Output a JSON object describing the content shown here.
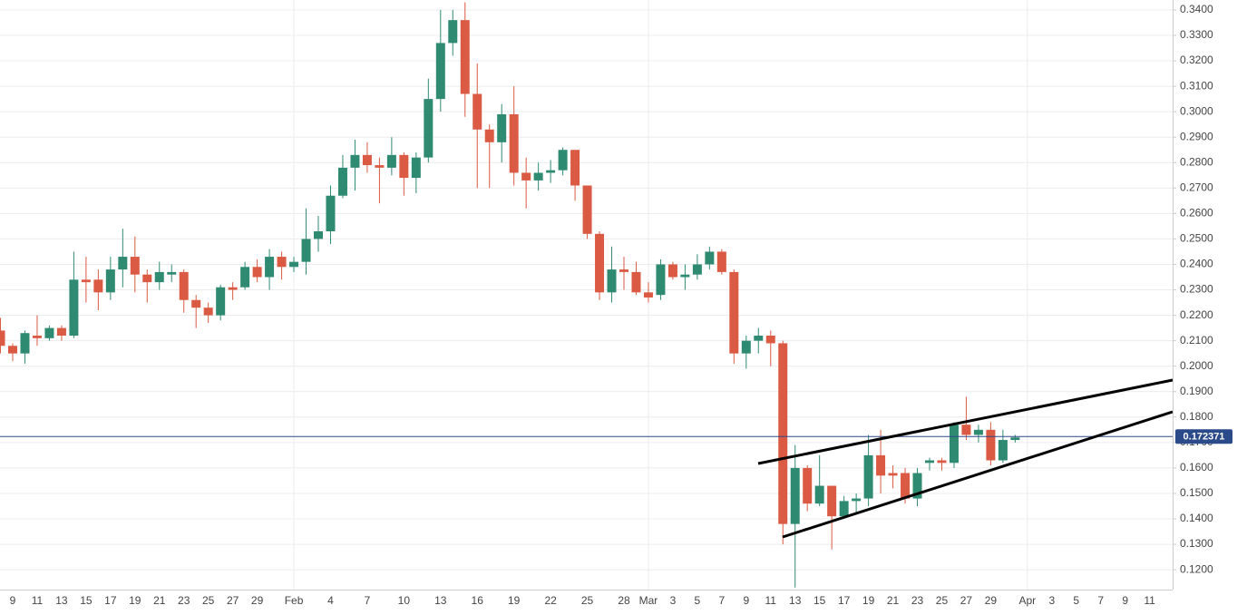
{
  "chart_data": {
    "type": "candlestick",
    "categories": [
      null,
      "9",
      null,
      "11",
      null,
      "13",
      null,
      "15",
      null,
      "17",
      null,
      "19",
      null,
      "21",
      null,
      "23",
      null,
      "25",
      null,
      "27",
      null,
      "29",
      null,
      null,
      "Feb",
      null,
      null,
      "4",
      null,
      null,
      "7",
      null,
      null,
      "10",
      null,
      null,
      "13",
      null,
      null,
      "16",
      null,
      null,
      "19",
      null,
      null,
      "22",
      null,
      null,
      "25",
      null,
      null,
      "28",
      null,
      "Mar",
      null,
      "3",
      null,
      "5",
      null,
      "7",
      null,
      "9",
      null,
      "11",
      null,
      "13",
      null,
      "15",
      null,
      "17",
      null,
      "19",
      null,
      "21",
      null,
      "23",
      null,
      "25",
      null,
      "27",
      null,
      "29",
      null,
      null,
      "Apr",
      null,
      "3",
      null,
      "5",
      null,
      "7",
      null,
      "9",
      null,
      "11",
      null
    ],
    "open": [
      0.214,
      0.208,
      0.205,
      0.212,
      0.211,
      0.215,
      0.212,
      0.234,
      0.234,
      0.229,
      0.238,
      0.243,
      0.236,
      0.233,
      0.236,
      0.237,
      0.226,
      0.223,
      0.22,
      0.231,
      0.231,
      0.239,
      0.235,
      0.243,
      0.239,
      0.241,
      0.25,
      0.253,
      0.267,
      0.278,
      0.283,
      0.279,
      0.278,
      0.283,
      0.274,
      0.282,
      0.305,
      0.327,
      0.336,
      0.307,
      0.293,
      0.288,
      0.299,
      0.276,
      0.273,
      0.276,
      0.277,
      0.285,
      0.271,
      0.252,
      0.229,
      0.238,
      0.237,
      0.229,
      0.228,
      0.24,
      0.235,
      0.236,
      0.24,
      0.245,
      0.237,
      0.205,
      0.21,
      0.212,
      0.209,
      0.138,
      0.16,
      0.146,
      0.153,
      0.141,
      0.147,
      0.148,
      0.165,
      0.158,
      0.158,
      0.148,
      0.162,
      0.163,
      0.162,
      0.177,
      0.173,
      0.175,
      0.163,
      0.171,
      null,
      null,
      null,
      null,
      null,
      null,
      null,
      null,
      null,
      null,
      null,
      null
    ],
    "high": [
      0.219,
      0.209,
      0.214,
      0.22,
      0.216,
      0.216,
      0.245,
      0.243,
      0.238,
      0.243,
      0.254,
      0.251,
      0.238,
      0.241,
      0.24,
      0.238,
      0.228,
      0.225,
      0.232,
      0.233,
      0.241,
      0.242,
      0.246,
      0.245,
      0.243,
      0.262,
      0.259,
      0.271,
      0.283,
      0.289,
      0.288,
      0.282,
      0.29,
      0.284,
      0.284,
      0.313,
      0.34,
      0.34,
      0.343,
      0.319,
      0.295,
      0.303,
      0.31,
      0.282,
      0.28,
      0.281,
      0.286,
      0.285,
      0.271,
      0.253,
      0.247,
      0.243,
      0.241,
      0.233,
      0.242,
      0.241,
      0.24,
      0.244,
      0.247,
      0.246,
      0.238,
      0.212,
      0.215,
      0.214,
      0.21,
      0.169,
      0.161,
      0.165,
      0.153,
      0.149,
      0.15,
      0.173,
      0.175,
      0.161,
      0.16,
      0.16,
      0.164,
      0.164,
      0.178,
      0.188,
      0.177,
      0.178,
      0.175,
      0.173,
      null,
      null,
      null,
      null,
      null,
      null,
      null,
      null,
      null,
      null,
      null,
      null
    ],
    "low": [
      0.205,
      0.202,
      0.201,
      0.208,
      0.21,
      0.21,
      0.211,
      0.225,
      0.222,
      0.226,
      0.231,
      0.229,
      0.225,
      0.23,
      0.233,
      0.221,
      0.215,
      0.217,
      0.218,
      0.226,
      0.23,
      0.233,
      0.23,
      0.234,
      0.237,
      0.236,
      0.245,
      0.248,
      0.266,
      0.269,
      0.276,
      0.264,
      0.275,
      0.267,
      0.268,
      0.28,
      0.3,
      0.322,
      0.298,
      0.27,
      0.27,
      0.28,
      0.271,
      0.262,
      0.269,
      0.272,
      0.275,
      0.265,
      0.25,
      0.226,
      0.225,
      0.23,
      0.228,
      0.225,
      0.226,
      0.234,
      0.23,
      0.234,
      0.238,
      0.236,
      0.201,
      0.199,
      0.205,
      0.2,
      0.13,
      0.113,
      0.143,
      0.145,
      0.128,
      0.14,
      0.142,
      0.145,
      0.15,
      0.152,
      0.146,
      0.145,
      0.159,
      0.159,
      0.16,
      0.171,
      0.17,
      0.161,
      0.162,
      0.17,
      null,
      null,
      null,
      null,
      null,
      null,
      null,
      null,
      null,
      null,
      null,
      null
    ],
    "close": [
      0.208,
      0.205,
      0.213,
      0.211,
      0.215,
      0.212,
      0.234,
      0.233,
      0.229,
      0.238,
      0.243,
      0.236,
      0.233,
      0.237,
      0.237,
      0.226,
      0.223,
      0.22,
      0.231,
      0.23,
      0.239,
      0.235,
      0.243,
      0.239,
      0.241,
      0.25,
      0.253,
      0.267,
      0.278,
      0.283,
      0.279,
      0.278,
      0.283,
      0.274,
      0.282,
      0.305,
      0.327,
      0.336,
      0.307,
      0.293,
      0.288,
      0.299,
      0.276,
      0.273,
      0.276,
      0.277,
      0.285,
      0.271,
      0.252,
      0.229,
      0.238,
      0.237,
      0.229,
      0.227,
      0.24,
      0.235,
      0.236,
      0.24,
      0.245,
      0.237,
      0.205,
      0.21,
      0.212,
      0.209,
      0.138,
      0.16,
      0.146,
      0.153,
      0.141,
      0.147,
      0.148,
      0.165,
      0.157,
      0.157,
      0.148,
      0.158,
      0.163,
      0.162,
      0.177,
      0.173,
      0.175,
      0.163,
      0.171,
      0.172,
      null,
      null,
      null,
      null,
      null,
      null,
      null,
      null,
      null,
      null,
      null,
      null
    ],
    "up_color": "#2f8a72",
    "down_color": "#db5a43",
    "ylim": [
      0.1122,
      0.3439
    ],
    "yticks": [
      {
        "value": 0.12,
        "label": "0.1200"
      },
      {
        "value": 0.13,
        "label": "0.1300"
      },
      {
        "value": 0.14,
        "label": "0.1400"
      },
      {
        "value": 0.15,
        "label": "0.1500"
      },
      {
        "value": 0.16,
        "label": "0.1600"
      },
      {
        "value": 0.17,
        "label": "0.1700"
      },
      {
        "value": 0.18,
        "label": "0.1800"
      },
      {
        "value": 0.19,
        "label": "0.1900"
      },
      {
        "value": 0.2,
        "label": "0.2000"
      },
      {
        "value": 0.21,
        "label": "0.2100"
      },
      {
        "value": 0.22,
        "label": "0.2200"
      },
      {
        "value": 0.23,
        "label": "0.2300"
      },
      {
        "value": 0.24,
        "label": "0.2400"
      },
      {
        "value": 0.25,
        "label": "0.2500"
      },
      {
        "value": 0.26,
        "label": "0.2600"
      },
      {
        "value": 0.27,
        "label": "0.2700"
      },
      {
        "value": 0.28,
        "label": "0.2800"
      },
      {
        "value": 0.29,
        "label": "0.2900"
      },
      {
        "value": 0.3,
        "label": "0.3000"
      },
      {
        "value": 0.31,
        "label": "0.3100"
      },
      {
        "value": 0.32,
        "label": "0.3200"
      },
      {
        "value": 0.33,
        "label": "0.3300"
      },
      {
        "value": 0.34,
        "label": "0.3400"
      }
    ],
    "grid": true,
    "last_price": 0.172371,
    "last_price_color": "#2b4a8a"
  }
}
